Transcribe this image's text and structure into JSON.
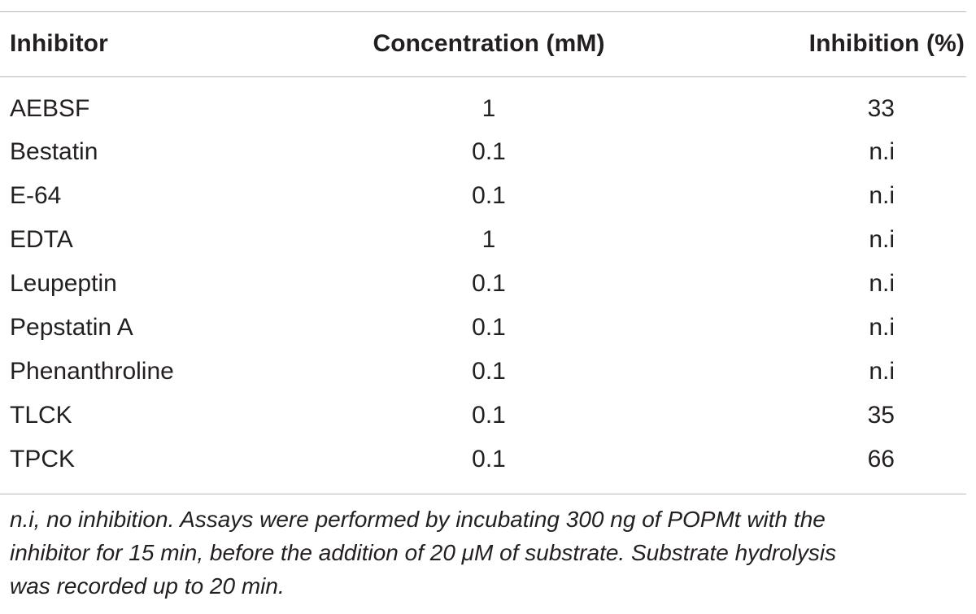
{
  "table": {
    "headers": {
      "inhibitor": "Inhibitor",
      "concentration": "Concentration (mM)",
      "inhibition": "Inhibition (%)"
    },
    "rows": [
      {
        "inhibitor": "AEBSF",
        "concentration": "1",
        "inhibition": "33"
      },
      {
        "inhibitor": "Bestatin",
        "concentration": "0.1",
        "inhibition": "n.i"
      },
      {
        "inhibitor": "E-64",
        "concentration": "0.1",
        "inhibition": "n.i"
      },
      {
        "inhibitor": "EDTA",
        "concentration": "1",
        "inhibition": "n.i"
      },
      {
        "inhibitor": "Leupeptin",
        "concentration": "0.1",
        "inhibition": "n.i"
      },
      {
        "inhibitor": "Pepstatin A",
        "concentration": "0.1",
        "inhibition": "n.i"
      },
      {
        "inhibitor": "Phenanthroline",
        "concentration": "0.1",
        "inhibition": "n.i"
      },
      {
        "inhibitor": "TLCK",
        "concentration": "0.1",
        "inhibition": "35"
      },
      {
        "inhibitor": "TPCK",
        "concentration": "0.1",
        "inhibition": "66"
      }
    ]
  },
  "footnote": {
    "line1": "n.i, no inhibition. Assays were performed by incubating 300 ng of POPMt with the",
    "line2": "inhibitor for 15 min, before the addition of 20 μM of substrate. Substrate hydrolysis",
    "line3": "was recorded up to 20 min."
  }
}
